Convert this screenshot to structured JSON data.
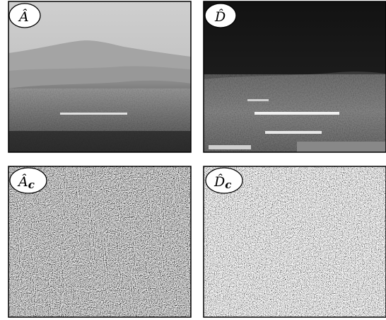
{
  "panels": [
    {
      "label": "Â"
    },
    {
      "label": "D̂"
    },
    {
      "label": "Â",
      "subscript": "c"
    },
    {
      "label": "D̂",
      "subscript": "c"
    }
  ]
}
